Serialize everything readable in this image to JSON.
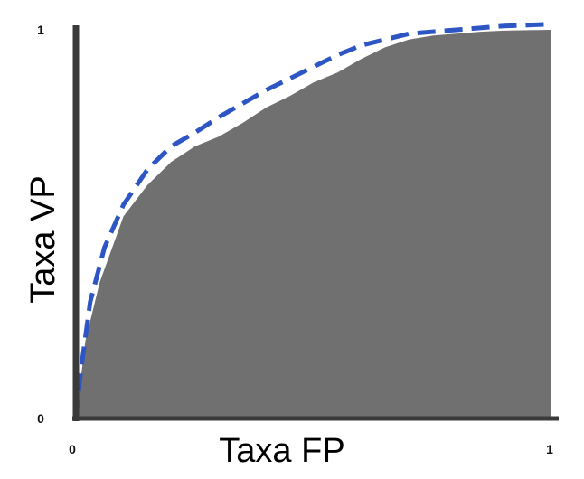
{
  "chart_data": {
    "type": "area",
    "xlabel": "Taxa FP",
    "ylabel": "Taxa VP",
    "xlim": [
      0,
      1
    ],
    "ylim": [
      0,
      1
    ],
    "x_ticks": [
      "0",
      "1"
    ],
    "y_ticks": [
      "0",
      "1"
    ],
    "grid": false,
    "colors": {
      "fill": "#707070",
      "dashed": "#2e55c4",
      "axis": "#3a3a3a"
    },
    "series": [
      {
        "style": "filled-area",
        "x": [
          0,
          0.02,
          0.05,
          0.1,
          0.15,
          0.2,
          0.25,
          0.3,
          0.35,
          0.4,
          0.45,
          0.5,
          0.55,
          0.6,
          0.65,
          0.7,
          0.75,
          0.8,
          0.85,
          0.9,
          0.95,
          1
        ],
        "y": [
          0,
          0.2,
          0.35,
          0.52,
          0.6,
          0.66,
          0.7,
          0.725,
          0.76,
          0.8,
          0.83,
          0.865,
          0.89,
          0.925,
          0.955,
          0.975,
          0.985,
          0.99,
          0.995,
          0.998,
          0.999,
          1
        ]
      },
      {
        "style": "dashed-line",
        "x": [
          0,
          0.01,
          0.03,
          0.06,
          0.1,
          0.15,
          0.2,
          0.25,
          0.3,
          0.35,
          0.4,
          0.45,
          0.5,
          0.55,
          0.6,
          0.65,
          0.7,
          0.75,
          0.8,
          0.85,
          0.9,
          0.95,
          1
        ],
        "y": [
          0,
          0.12,
          0.3,
          0.44,
          0.55,
          0.64,
          0.7,
          0.735,
          0.775,
          0.81,
          0.845,
          0.875,
          0.905,
          0.935,
          0.96,
          0.975,
          0.99,
          0.995,
          1.0,
          1.005,
          1.01,
          1.012,
          1.015
        ]
      }
    ]
  }
}
